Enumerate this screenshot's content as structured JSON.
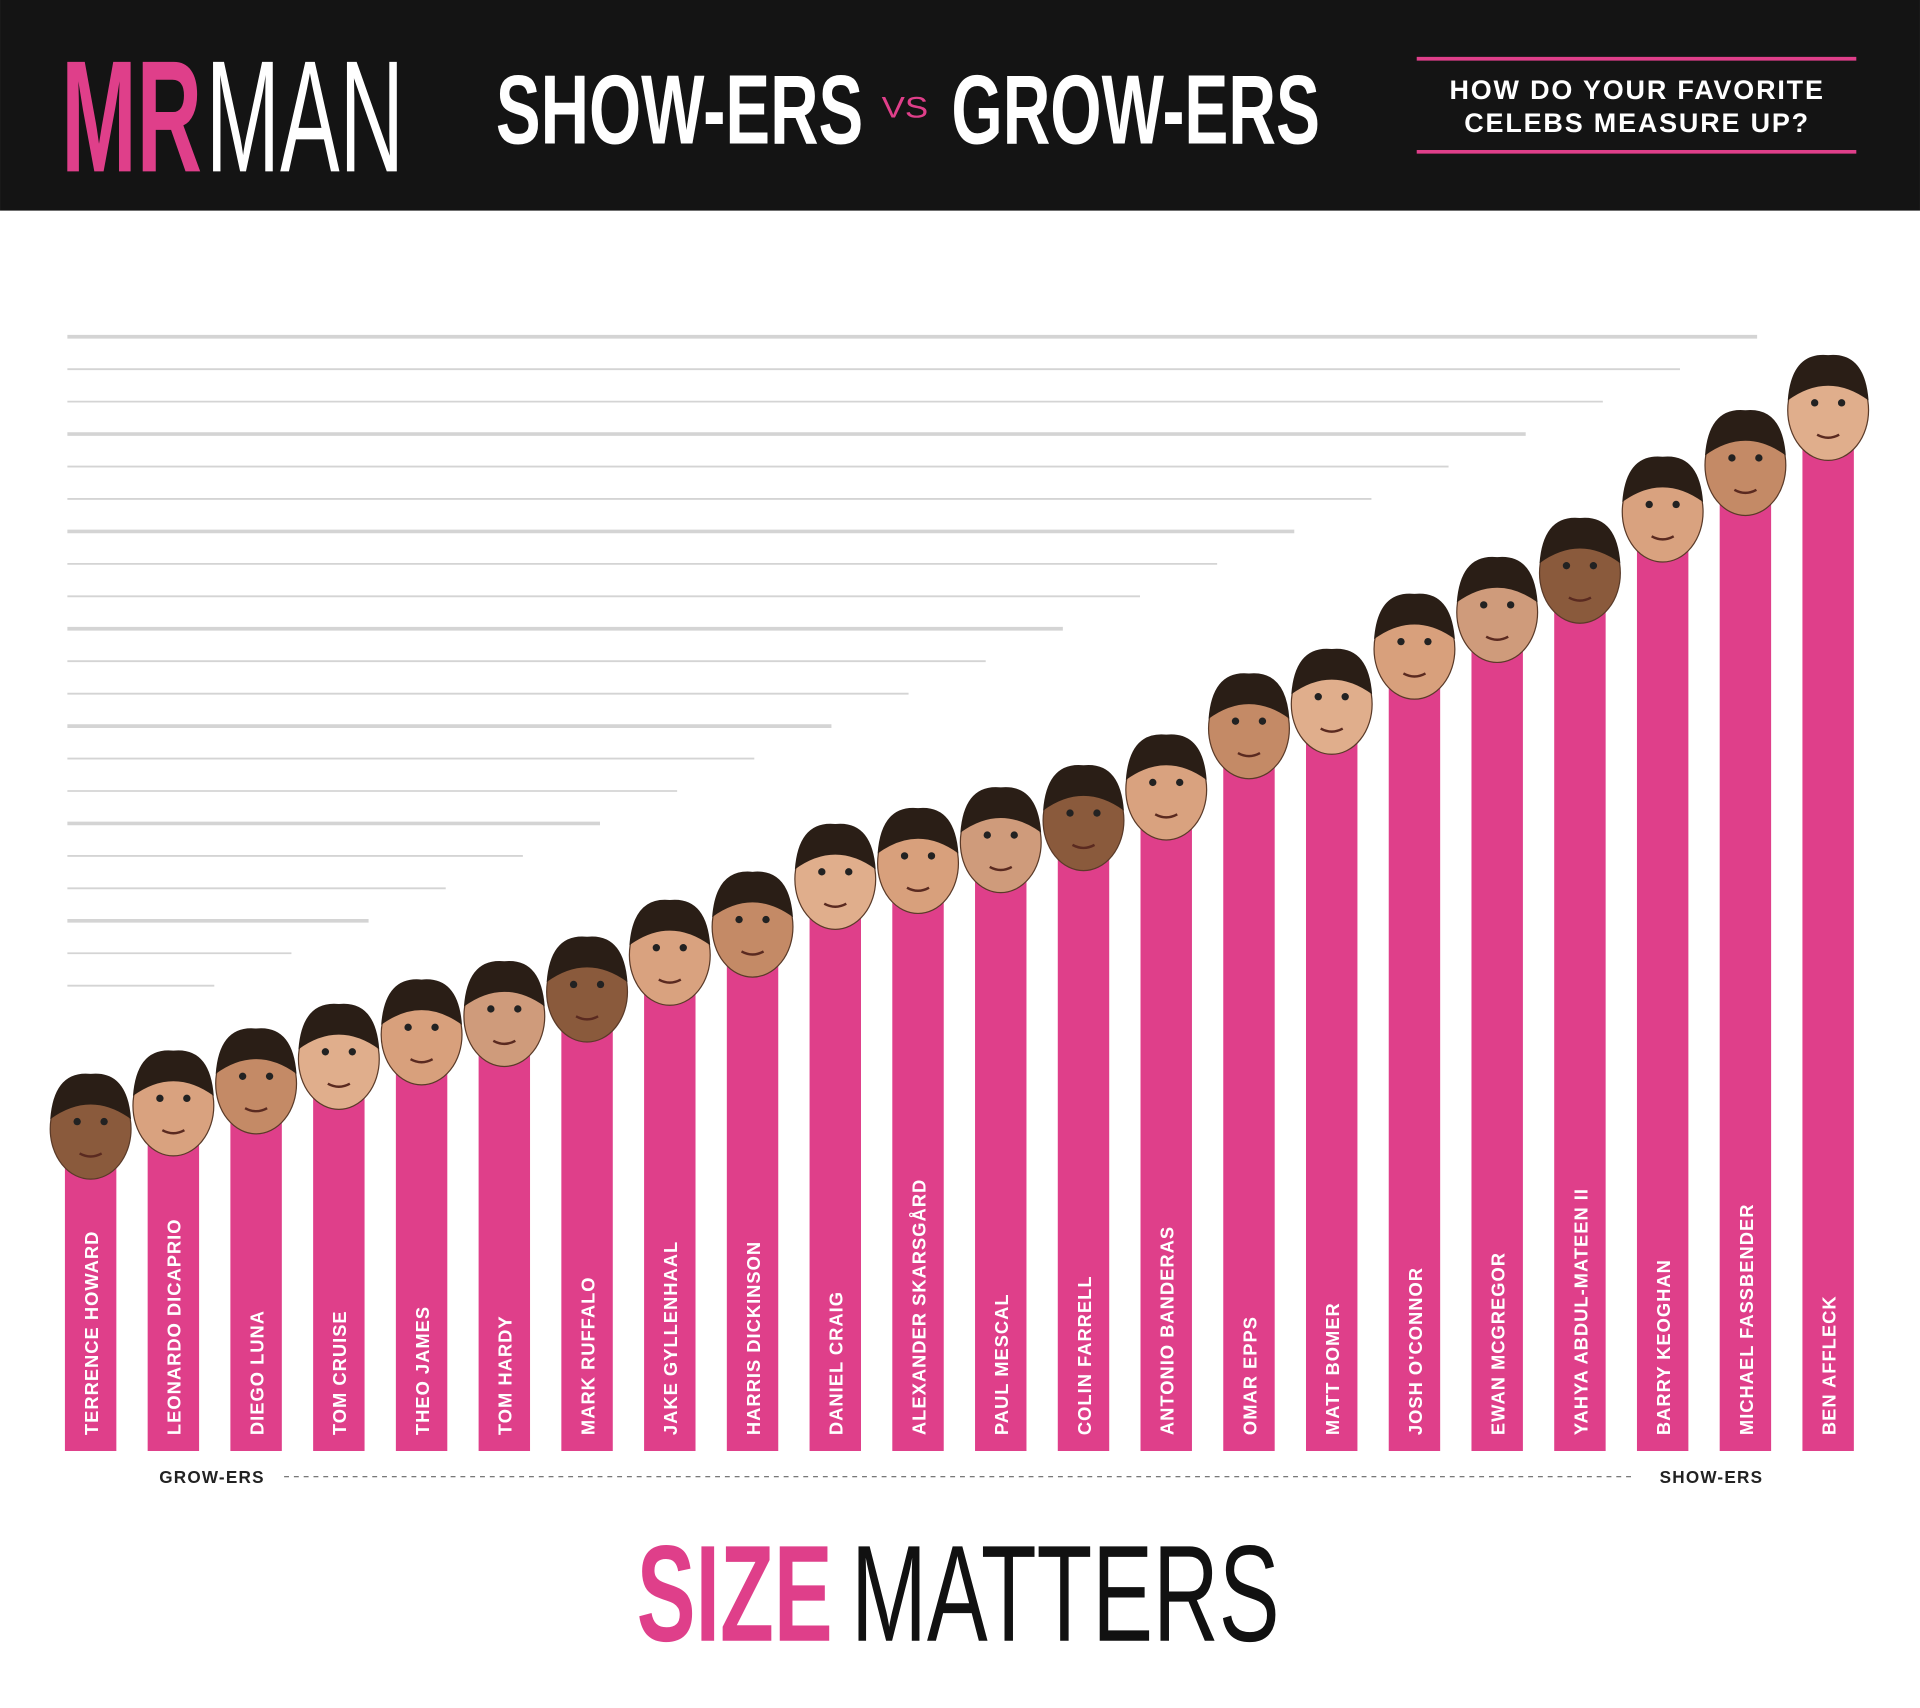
{
  "chart_data": {
    "type": "bar",
    "logo": [
      "MR",
      "MAN"
    ],
    "title": [
      "SHOW-ERS",
      "VS",
      "GROW-ERS"
    ],
    "subtitle": [
      "HOW DO YOUR FAVORITE",
      "CELEBS MEASURE UP?"
    ],
    "axis_labels": {
      "start": "GROW-ERS",
      "end": "SHOW-ERS"
    },
    "footer": [
      "SIZE",
      "MATTERS"
    ],
    "color": "#df3f8a",
    "categories": [
      "TERRENCE HOWARD",
      "LEONARDO DICAPRIO",
      "DIEGO LUNA",
      "TOM CRUISE",
      "THEO JAMES",
      "TOM HARDY",
      "MARK RUFFALO",
      "JAKE GYLLENHAAL",
      "HARRIS DICKINSON",
      "DANIEL CRAIG",
      "ALEXANDER SKARSGÅRD",
      "PAUL MESCAL",
      "COLIN FARRELL",
      "ANTONIO BANDERAS",
      "OMAR EPPS",
      "MATT BOMER",
      "JOSH O'CONNOR",
      "EWAN MCGREGOR",
      "YAHYA ABDUL-MATEEN II",
      "BARRY KEOGHAN",
      "MICHAEL FASSBENDER",
      "BEN AFFLECK"
    ],
    "values": [
      263,
      282,
      300,
      320,
      340,
      355,
      375,
      405,
      428,
      467,
      480,
      497,
      515,
      540,
      590,
      610,
      655,
      685,
      717,
      767,
      805,
      850
    ],
    "ylim": [
      0,
      900
    ]
  }
}
